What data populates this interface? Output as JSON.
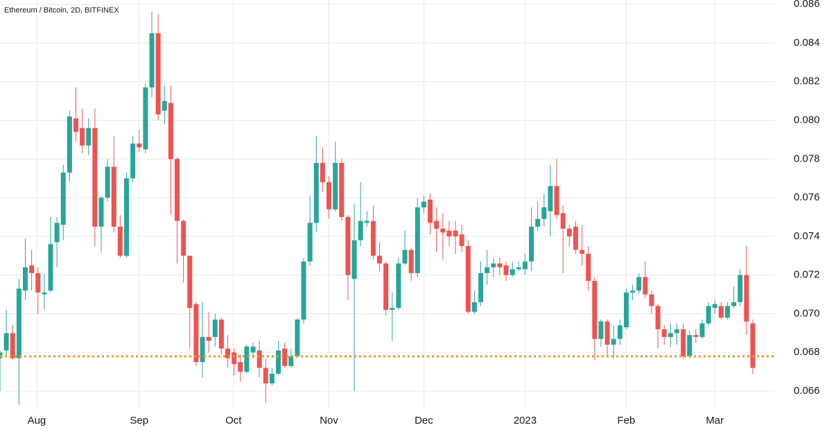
{
  "chart_data": {
    "type": "candlestick",
    "title": "Ethereum / Bitcoin, 2D, BITFINEX",
    "up_color": "#26a69a",
    "down_color": "#ef5350",
    "grid": true,
    "xlim": [
      0,
      122.4
    ],
    "xticks": [
      {
        "value": 5.8,
        "label": "Aug"
      },
      {
        "value": 22,
        "label": "Sep"
      },
      {
        "value": 36.9,
        "label": "Oct"
      },
      {
        "value": 52,
        "label": "Nov"
      },
      {
        "value": 67,
        "label": "Dec"
      },
      {
        "value": 83,
        "label": "2023"
      },
      {
        "value": 99,
        "label": "Feb"
      },
      {
        "value": 113,
        "label": "Mar"
      }
    ],
    "ylim": [
      0.06507,
      0.08622
    ],
    "yticks": [
      0.066,
      0.068,
      {
        "value": 0.07,
        "label": "0.070"
      },
      0.072,
      0.074,
      0.076,
      0.078,
      {
        "value": 0.08,
        "label": "0.080"
      },
      0.082,
      0.084,
      0.086
    ],
    "hline": {
      "value": 0.0678,
      "color": "#f7931a"
    },
    "open": [
      0.0677,
      0.0681,
      0.069,
      0.0677,
      0.0712,
      0.0725,
      0.0721,
      0.071,
      0.0712,
      0.0737,
      0.0746,
      0.0773,
      0.0801,
      0.0796,
      0.0787,
      0.0796,
      0.0745,
      0.076,
      0.0776,
      0.0745,
      0.073,
      0.077,
      0.0788,
      0.0785,
      0.0817,
      0.0845,
      0.0805,
      0.0809,
      0.078,
      0.0748,
      0.073,
      0.0705,
      0.0675,
      0.0688,
      0.0688,
      0.0697,
      0.0682,
      0.068,
      0.0675,
      0.067,
      0.068,
      0.0681,
      0.0672,
      0.0664,
      0.0669,
      0.0682,
      0.0673,
      0.0678,
      0.0697,
      0.0727,
      0.0747,
      0.0778,
      0.0768,
      0.0754,
      0.0778,
      0.075,
      0.0718,
      0.0738,
      0.0747,
      0.0748,
      0.073,
      0.0726,
      0.0702,
      0.0703,
      0.0726,
      0.0733,
      0.0721,
      0.0755,
      0.0759,
      0.0748,
      0.0744,
      0.0743,
      0.0743,
      0.0741,
      0.0735,
      0.0701,
      0.0706,
      0.0721,
      0.0724,
      0.0726,
      0.0725,
      0.072,
      0.0723,
      0.0723,
      0.0727,
      0.0745,
      0.0749,
      0.0753,
      0.0766,
      0.0752,
      0.0744,
      0.0745,
      0.0733,
      0.0731,
      0.0717,
      0.0687,
      0.0696,
      0.0684,
      0.0687,
      0.0693,
      0.0711,
      0.0712,
      0.0719,
      0.071,
      0.0704,
      0.0692,
      0.0688,
      0.069,
      0.0692,
      0.0678,
      0.0689,
      0.0688,
      0.0695,
      0.0703,
      0.0704,
      0.0698,
      0.0704,
      0.0706,
      0.072,
      0.0695
    ],
    "high": [
      0.0681,
      0.0702,
      0.0694,
      0.0718,
      0.0739,
      0.0733,
      0.0724,
      0.0721,
      0.075,
      0.075,
      0.0777,
      0.0805,
      0.0817,
      0.0806,
      0.0801,
      0.0806,
      0.0761,
      0.078,
      0.0792,
      0.0751,
      0.0773,
      0.0792,
      0.0795,
      0.0819,
      0.0856,
      0.0855,
      0.0818,
      0.0818,
      0.0781,
      0.0749,
      0.073,
      0.0706,
      0.0706,
      0.0701,
      0.07,
      0.0698,
      0.0689,
      0.0682,
      0.0679,
      0.0684,
      0.0685,
      0.0686,
      0.0677,
      0.0672,
      0.0686,
      0.0685,
      0.0682,
      0.0698,
      0.0729,
      0.0761,
      0.0792,
      0.0786,
      0.0771,
      0.0789,
      0.078,
      0.0751,
      0.0757,
      0.0768,
      0.0753,
      0.0756,
      0.0737,
      0.0727,
      0.0711,
      0.0729,
      0.0743,
      0.0734,
      0.076,
      0.0761,
      0.0762,
      0.0755,
      0.0752,
      0.0748,
      0.0748,
      0.0746,
      0.0738,
      0.0712,
      0.0727,
      0.0733,
      0.0729,
      0.0729,
      0.0727,
      0.0727,
      0.0727,
      0.0731,
      0.0755,
      0.0758,
      0.0762,
      0.0777,
      0.078,
      0.0756,
      0.0746,
      0.0748,
      0.0746,
      0.0735,
      0.0719,
      0.0697,
      0.0697,
      0.0694,
      0.0697,
      0.0713,
      0.0715,
      0.0721,
      0.0727,
      0.0712,
      0.0705,
      0.0694,
      0.0695,
      0.0695,
      0.0695,
      0.0691,
      0.0692,
      0.0697,
      0.0706,
      0.0707,
      0.0706,
      0.0706,
      0.0714,
      0.0723,
      0.0735,
      0.0697
    ],
    "low": [
      0.066,
      0.0678,
      0.0676,
      0.0653,
      0.0707,
      0.0712,
      0.07,
      0.0702,
      0.0711,
      0.0724,
      0.0738,
      0.0768,
      0.0789,
      0.0783,
      0.0782,
      0.0735,
      0.0732,
      0.0758,
      0.0742,
      0.0729,
      0.0729,
      0.0768,
      0.0784,
      0.0783,
      0.0812,
      0.08,
      0.0798,
      0.0751,
      0.0726,
      0.0716,
      0.0682,
      0.0673,
      0.0667,
      0.068,
      0.0683,
      0.0679,
      0.0672,
      0.0668,
      0.0665,
      0.0669,
      0.0677,
      0.0667,
      0.0654,
      0.0663,
      0.0668,
      0.0672,
      0.0672,
      0.0677,
      0.0695,
      0.0725,
      0.0742,
      0.0763,
      0.0749,
      0.0753,
      0.0748,
      0.0707,
      0.066,
      0.0735,
      0.0745,
      0.0728,
      0.0722,
      0.0699,
      0.0686,
      0.0702,
      0.0725,
      0.0717,
      0.0719,
      0.0752,
      0.0741,
      0.0732,
      0.0728,
      0.0735,
      0.0731,
      0.0732,
      0.07,
      0.07,
      0.0704,
      0.0715,
      0.0719,
      0.072,
      0.0717,
      0.0719,
      0.0722,
      0.072,
      0.0722,
      0.0743,
      0.0745,
      0.074,
      0.0749,
      0.0721,
      0.0735,
      0.0731,
      0.0725,
      0.0712,
      0.0676,
      0.0683,
      0.0678,
      0.0677,
      0.0684,
      0.0692,
      0.0707,
      0.071,
      0.0708,
      0.07,
      0.0682,
      0.0684,
      0.0683,
      0.0684,
      0.0677,
      0.0677,
      0.0685,
      0.0687,
      0.0694,
      0.07,
      0.0697,
      0.0697,
      0.0703,
      0.0704,
      0.0689,
      0.0669
    ],
    "close": [
      0.068,
      0.069,
      0.0677,
      0.0713,
      0.0724,
      0.0721,
      0.0711,
      0.0711,
      0.0736,
      0.0747,
      0.0773,
      0.0802,
      0.0794,
      0.0787,
      0.0796,
      0.0745,
      0.076,
      0.0776,
      0.0745,
      0.073,
      0.077,
      0.0788,
      0.0786,
      0.0817,
      0.0845,
      0.0803,
      0.081,
      0.078,
      0.0748,
      0.073,
      0.0703,
      0.0675,
      0.0688,
      0.0686,
      0.0697,
      0.0682,
      0.0677,
      0.0674,
      0.067,
      0.0683,
      0.0683,
      0.0672,
      0.0664,
      0.0669,
      0.0681,
      0.0673,
      0.0678,
      0.0697,
      0.0727,
      0.0747,
      0.0778,
      0.0768,
      0.0754,
      0.0778,
      0.075,
      0.072,
      0.0738,
      0.0748,
      0.0748,
      0.073,
      0.0726,
      0.0702,
      0.0703,
      0.0726,
      0.0733,
      0.0721,
      0.0755,
      0.0758,
      0.0747,
      0.0744,
      0.0742,
      0.074,
      0.074,
      0.0735,
      0.0701,
      0.0706,
      0.0721,
      0.0724,
      0.0726,
      0.0724,
      0.072,
      0.0723,
      0.0724,
      0.0727,
      0.0745,
      0.0749,
      0.0755,
      0.0766,
      0.0751,
      0.0744,
      0.074,
      0.0733,
      0.0731,
      0.0717,
      0.0687,
      0.0696,
      0.0684,
      0.0687,
      0.0694,
      0.0711,
      0.0712,
      0.0719,
      0.071,
      0.0704,
      0.0692,
      0.0688,
      0.069,
      0.0692,
      0.0678,
      0.0689,
      0.0688,
      0.0695,
      0.0704,
      0.0705,
      0.0698,
      0.0704,
      0.0706,
      0.072,
      0.0696,
      0.0672
    ]
  }
}
